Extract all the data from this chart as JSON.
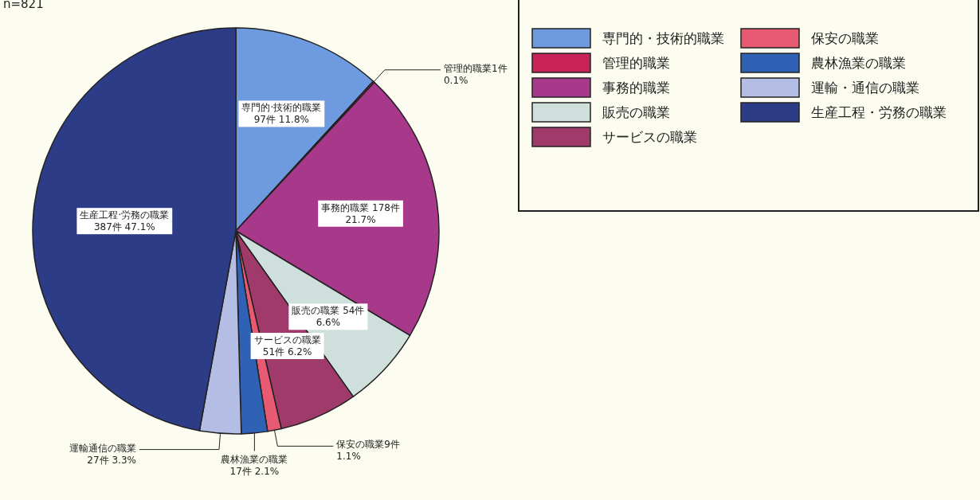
{
  "chart_data": {
    "type": "pie",
    "categories": [
      "専門的・技術的職業",
      "管理的職業",
      "事務的職業",
      "販売の職業",
      "サービスの職業",
      "保安の職業",
      "農林漁業の職業",
      "運輸・通信の職業",
      "生産工程・労務の職業"
    ],
    "values": [
      97,
      1,
      178,
      54,
      51,
      9,
      17,
      27,
      387
    ],
    "colors": [
      "#6e9be0",
      "#c8245a",
      "#a8388a",
      "#cfe0dc",
      "#a03a6a",
      "#e85a72",
      "#2f62b5",
      "#b4bde3",
      "#2d3c86"
    ],
    "value_labels": [
      "専門的·技術的職業\n97件 11.8%",
      "管理的職業1件\n0.1%",
      "事務的職業 178件\n21.7%",
      "販売の職業 54件\n6.6%",
      "サービスの職業\n51件 6.2%",
      "保安の職業9件\n1.1%",
      "農林漁業の職業\n17件 2.1%",
      "運輸通信の職業\n27件 3.3%",
      "生産工程·労務の職業\n387件 47.1%"
    ],
    "annotations": [
      "n=821"
    ],
    "legend": "top right"
  }
}
